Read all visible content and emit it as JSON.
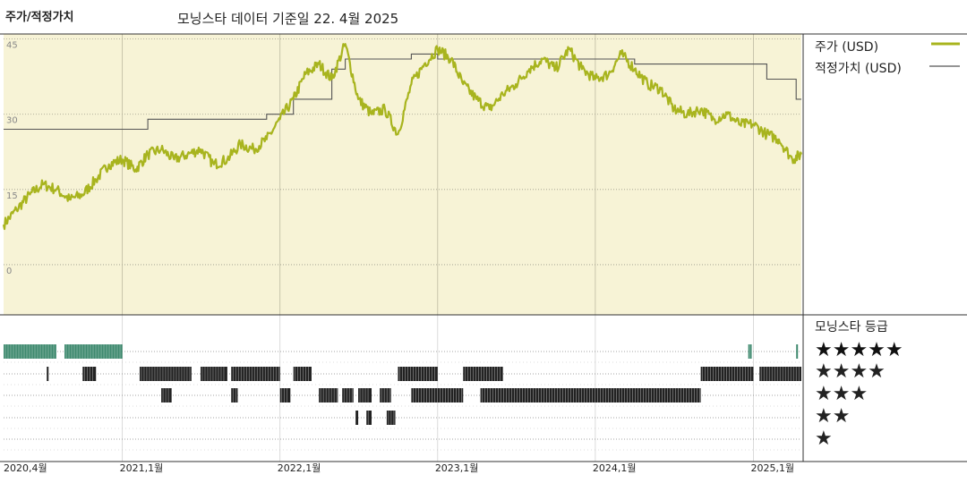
{
  "header": {
    "title": "주가/적정가치",
    "subtitle": "모닝스타 데이터 기준일 22. 4월 2025"
  },
  "legend": {
    "price_label": "주가 (USD)",
    "fair_label": "적정가치 (USD)",
    "price_color": "#a8b41e",
    "fair_color": "#555555"
  },
  "rating": {
    "title": "모닝스타 등급",
    "rows": [
      "★★★★★",
      "★★★★",
      "★★★",
      "★★",
      "★"
    ],
    "colors": {
      "five": "#3f8a6f",
      "other": "#222222"
    }
  },
  "chart_data": {
    "type": "line",
    "ylim": [
      -10,
      46
    ],
    "yticks": [
      0,
      15,
      30,
      45
    ],
    "xlim": [
      "2020-04-01",
      "2025-04-22"
    ],
    "xticks": [
      {
        "label": "2020,4월",
        "date": "2020-04-01"
      },
      {
        "label": "2021,1월",
        "date": "2021-01-01"
      },
      {
        "label": "2022,1월",
        "date": "2022-01-01"
      },
      {
        "label": "2023,1월",
        "date": "2023-01-01"
      },
      {
        "label": "2024,1월",
        "date": "2024-01-01"
      },
      {
        "label": "2025,1월",
        "date": "2025-01-01"
      }
    ],
    "background": "#f7f3d6",
    "series": [
      {
        "name": "주가 (USD)",
        "points": [
          [
            "2020-04-01",
            8
          ],
          [
            "2020-05-01",
            11
          ],
          [
            "2020-06-01",
            14
          ],
          [
            "2020-07-01",
            16
          ],
          [
            "2020-08-01",
            15
          ],
          [
            "2020-09-01",
            13
          ],
          [
            "2020-10-01",
            14
          ],
          [
            "2020-11-01",
            17
          ],
          [
            "2020-12-01",
            20
          ],
          [
            "2021-01-01",
            21
          ],
          [
            "2021-02-01",
            19
          ],
          [
            "2021-03-01",
            22
          ],
          [
            "2021-04-01",
            23
          ],
          [
            "2021-05-01",
            21
          ],
          [
            "2021-06-01",
            22
          ],
          [
            "2021-07-01",
            23
          ],
          [
            "2021-08-01",
            20
          ],
          [
            "2021-09-01",
            21
          ],
          [
            "2021-10-01",
            24
          ],
          [
            "2021-11-01",
            23
          ],
          [
            "2021-12-01",
            25
          ],
          [
            "2022-01-01",
            29
          ],
          [
            "2022-02-01",
            33
          ],
          [
            "2022-03-01",
            38
          ],
          [
            "2022-04-01",
            40
          ],
          [
            "2022-05-01",
            37
          ],
          [
            "2022-06-01",
            44
          ],
          [
            "2022-07-01",
            33
          ],
          [
            "2022-08-01",
            30
          ],
          [
            "2022-09-01",
            31
          ],
          [
            "2022-10-01",
            26
          ],
          [
            "2022-11-01",
            36
          ],
          [
            "2022-12-01",
            40
          ],
          [
            "2023-01-01",
            43
          ],
          [
            "2023-02-01",
            41
          ],
          [
            "2023-03-01",
            36
          ],
          [
            "2023-04-01",
            33
          ],
          [
            "2023-05-01",
            31
          ],
          [
            "2023-06-01",
            34
          ],
          [
            "2023-07-01",
            36
          ],
          [
            "2023-08-01",
            39
          ],
          [
            "2023-09-01",
            41
          ],
          [
            "2023-10-01",
            39
          ],
          [
            "2023-11-01",
            43
          ],
          [
            "2023-12-01",
            39
          ],
          [
            "2024-01-01",
            37
          ],
          [
            "2024-02-01",
            38
          ],
          [
            "2024-03-01",
            42
          ],
          [
            "2024-04-01",
            39
          ],
          [
            "2024-05-01",
            36
          ],
          [
            "2024-06-01",
            35
          ],
          [
            "2024-07-01",
            31
          ],
          [
            "2024-08-01",
            30
          ],
          [
            "2024-09-01",
            31
          ],
          [
            "2024-10-01",
            29
          ],
          [
            "2024-11-01",
            30
          ],
          [
            "2024-12-01",
            28
          ],
          [
            "2025-01-01",
            28
          ],
          [
            "2025-02-01",
            26
          ],
          [
            "2025-03-01",
            25
          ],
          [
            "2025-04-01",
            21
          ],
          [
            "2025-04-22",
            22
          ]
        ]
      },
      {
        "name": "적정가치 (USD)",
        "points": [
          [
            "2020-04-01",
            27
          ],
          [
            "2021-03-01",
            27
          ],
          [
            "2021-03-01",
            29
          ],
          [
            "2021-12-01",
            29
          ],
          [
            "2021-12-01",
            30
          ],
          [
            "2022-02-01",
            30
          ],
          [
            "2022-02-01",
            33
          ],
          [
            "2022-05-01",
            33
          ],
          [
            "2022-05-01",
            39
          ],
          [
            "2022-06-01",
            39
          ],
          [
            "2022-06-01",
            41
          ],
          [
            "2022-11-01",
            41
          ],
          [
            "2022-11-01",
            42
          ],
          [
            "2023-01-01",
            42
          ],
          [
            "2023-01-01",
            41
          ],
          [
            "2024-04-01",
            41
          ],
          [
            "2024-04-01",
            40
          ],
          [
            "2025-02-01",
            40
          ],
          [
            "2025-02-01",
            37
          ],
          [
            "2025-04-10",
            37
          ],
          [
            "2025-04-10",
            33
          ],
          [
            "2025-04-22",
            33
          ]
        ]
      }
    ],
    "rating_history": [
      {
        "stars": 5,
        "from": "2020-04-01",
        "to": "2020-08-01"
      },
      {
        "stars": 5,
        "from": "2020-08-20",
        "to": "2021-01-01"
      },
      {
        "stars": 5,
        "from": "2024-12-20",
        "to": "2024-12-28"
      },
      {
        "stars": 5,
        "from": "2025-04-10",
        "to": "2025-04-14"
      },
      {
        "stars": 4,
        "from": "2020-07-10",
        "to": "2020-07-14"
      },
      {
        "stars": 4,
        "from": "2020-10-01",
        "to": "2020-11-01"
      },
      {
        "stars": 4,
        "from": "2021-02-10",
        "to": "2021-06-10"
      },
      {
        "stars": 4,
        "from": "2021-07-01",
        "to": "2021-09-01"
      },
      {
        "stars": 4,
        "from": "2021-09-10",
        "to": "2022-01-01"
      },
      {
        "stars": 4,
        "from": "2022-02-01",
        "to": "2022-03-15"
      },
      {
        "stars": 4,
        "from": "2022-10-01",
        "to": "2023-01-01"
      },
      {
        "stars": 4,
        "from": "2023-03-01",
        "to": "2023-06-01"
      },
      {
        "stars": 4,
        "from": "2024-09-01",
        "to": "2025-01-01"
      },
      {
        "stars": 4,
        "from": "2025-01-15",
        "to": "2025-04-22"
      },
      {
        "stars": 3,
        "from": "2021-04-01",
        "to": "2021-04-25"
      },
      {
        "stars": 3,
        "from": "2021-09-10",
        "to": "2021-09-25"
      },
      {
        "stars": 3,
        "from": "2022-01-01",
        "to": "2022-01-25"
      },
      {
        "stars": 3,
        "from": "2022-04-01",
        "to": "2022-05-15"
      },
      {
        "stars": 3,
        "from": "2022-05-25",
        "to": "2022-06-20"
      },
      {
        "stars": 3,
        "from": "2022-07-01",
        "to": "2022-08-01"
      },
      {
        "stars": 3,
        "from": "2022-08-20",
        "to": "2022-09-15"
      },
      {
        "stars": 3,
        "from": "2022-11-01",
        "to": "2023-03-01"
      },
      {
        "stars": 3,
        "from": "2023-04-10",
        "to": "2024-09-01"
      },
      {
        "stars": 2,
        "from": "2022-06-25",
        "to": "2022-07-01"
      },
      {
        "stars": 2,
        "from": "2022-07-20",
        "to": "2022-08-01"
      },
      {
        "stars": 2,
        "from": "2022-09-05",
        "to": "2022-09-25"
      }
    ]
  }
}
